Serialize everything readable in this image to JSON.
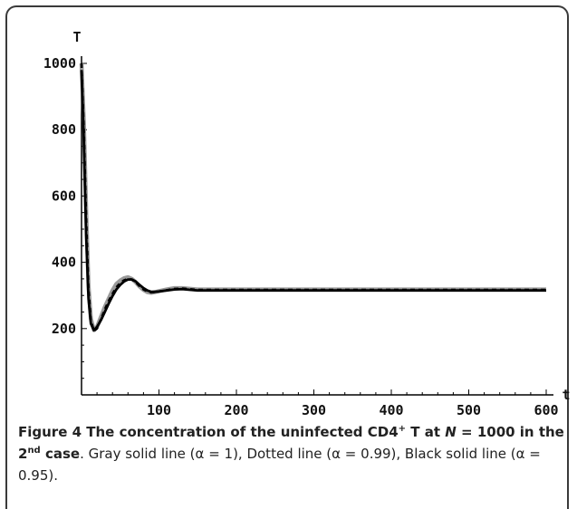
{
  "chart_data": {
    "type": "line",
    "ylabel": "T",
    "xlabel": "t",
    "xlim": [
      0,
      600
    ],
    "ylim": [
      0,
      1000
    ],
    "x_ticks": [
      100,
      200,
      300,
      400,
      500,
      600
    ],
    "y_ticks": [
      200,
      400,
      600,
      800,
      1000
    ],
    "x_tick_labels": [
      "100",
      "200",
      "300",
      "400",
      "500",
      600
    ],
    "y_tick_labels": [
      "200",
      "400",
      "600",
      "800",
      "1000"
    ],
    "series": [
      {
        "style": "gray-solid",
        "color": "#9a9a9a",
        "x": [
          0,
          3,
          6,
          9,
          12,
          16,
          20,
          25,
          30,
          35,
          40,
          45,
          50,
          55,
          60,
          65,
          70,
          75,
          80,
          85,
          90,
          95,
          100,
          110,
          120,
          130,
          140,
          150,
          175,
          200,
          300,
          400,
          500,
          600
        ],
        "y": [
          1000,
          820,
          560,
          330,
          230,
          195,
          205,
          235,
          265,
          290,
          315,
          335,
          345,
          352,
          355,
          350,
          340,
          327,
          317,
          310,
          308,
          310,
          313,
          318,
          322,
          322,
          320,
          318,
          318,
          318,
          318,
          318,
          318,
          318
        ]
      },
      {
        "style": "dotted",
        "color": "#000000",
        "x": [
          0,
          3,
          6,
          9,
          12,
          16,
          20,
          25,
          30,
          35,
          40,
          45,
          50,
          55,
          60,
          65,
          70,
          75,
          80,
          85,
          90,
          95,
          100,
          110,
          120,
          130,
          140,
          150,
          175,
          200,
          300,
          400,
          500,
          600
        ],
        "y": [
          1000,
          800,
          540,
          320,
          225,
          193,
          200,
          228,
          258,
          283,
          305,
          325,
          338,
          346,
          350,
          348,
          340,
          328,
          318,
          312,
          309,
          310,
          312,
          316,
          320,
          321,
          319,
          317,
          317,
          317,
          317,
          317,
          317,
          317
        ]
      },
      {
        "style": "black-solid",
        "color": "#000000",
        "x": [
          0,
          3,
          6,
          9,
          12,
          16,
          20,
          25,
          30,
          35,
          40,
          45,
          50,
          55,
          60,
          65,
          70,
          75,
          80,
          85,
          90,
          95,
          100,
          110,
          120,
          130,
          140,
          150,
          175,
          200,
          300,
          400,
          500,
          600
        ],
        "y": [
          980,
          760,
          480,
          290,
          215,
          195,
          205,
          225,
          250,
          275,
          298,
          318,
          332,
          342,
          348,
          348,
          342,
          332,
          322,
          315,
          311,
          311,
          312,
          315,
          318,
          319,
          317,
          315,
          315,
          315,
          315,
          315,
          315,
          315
        ]
      }
    ]
  },
  "caption": {
    "lead_1": "Figure 4 The concentration of the uninfected CD4",
    "lead_sup": "+",
    "lead_2": " T at ",
    "lead_N": "N",
    "lead_3": " = 1000 in the 2",
    "lead_sup2": "nd",
    "lead_4": " case",
    "rest": ". Gray solid line (α = 1), Dotted line (α = 0.99), Black solid line (α = 0.95)."
  }
}
